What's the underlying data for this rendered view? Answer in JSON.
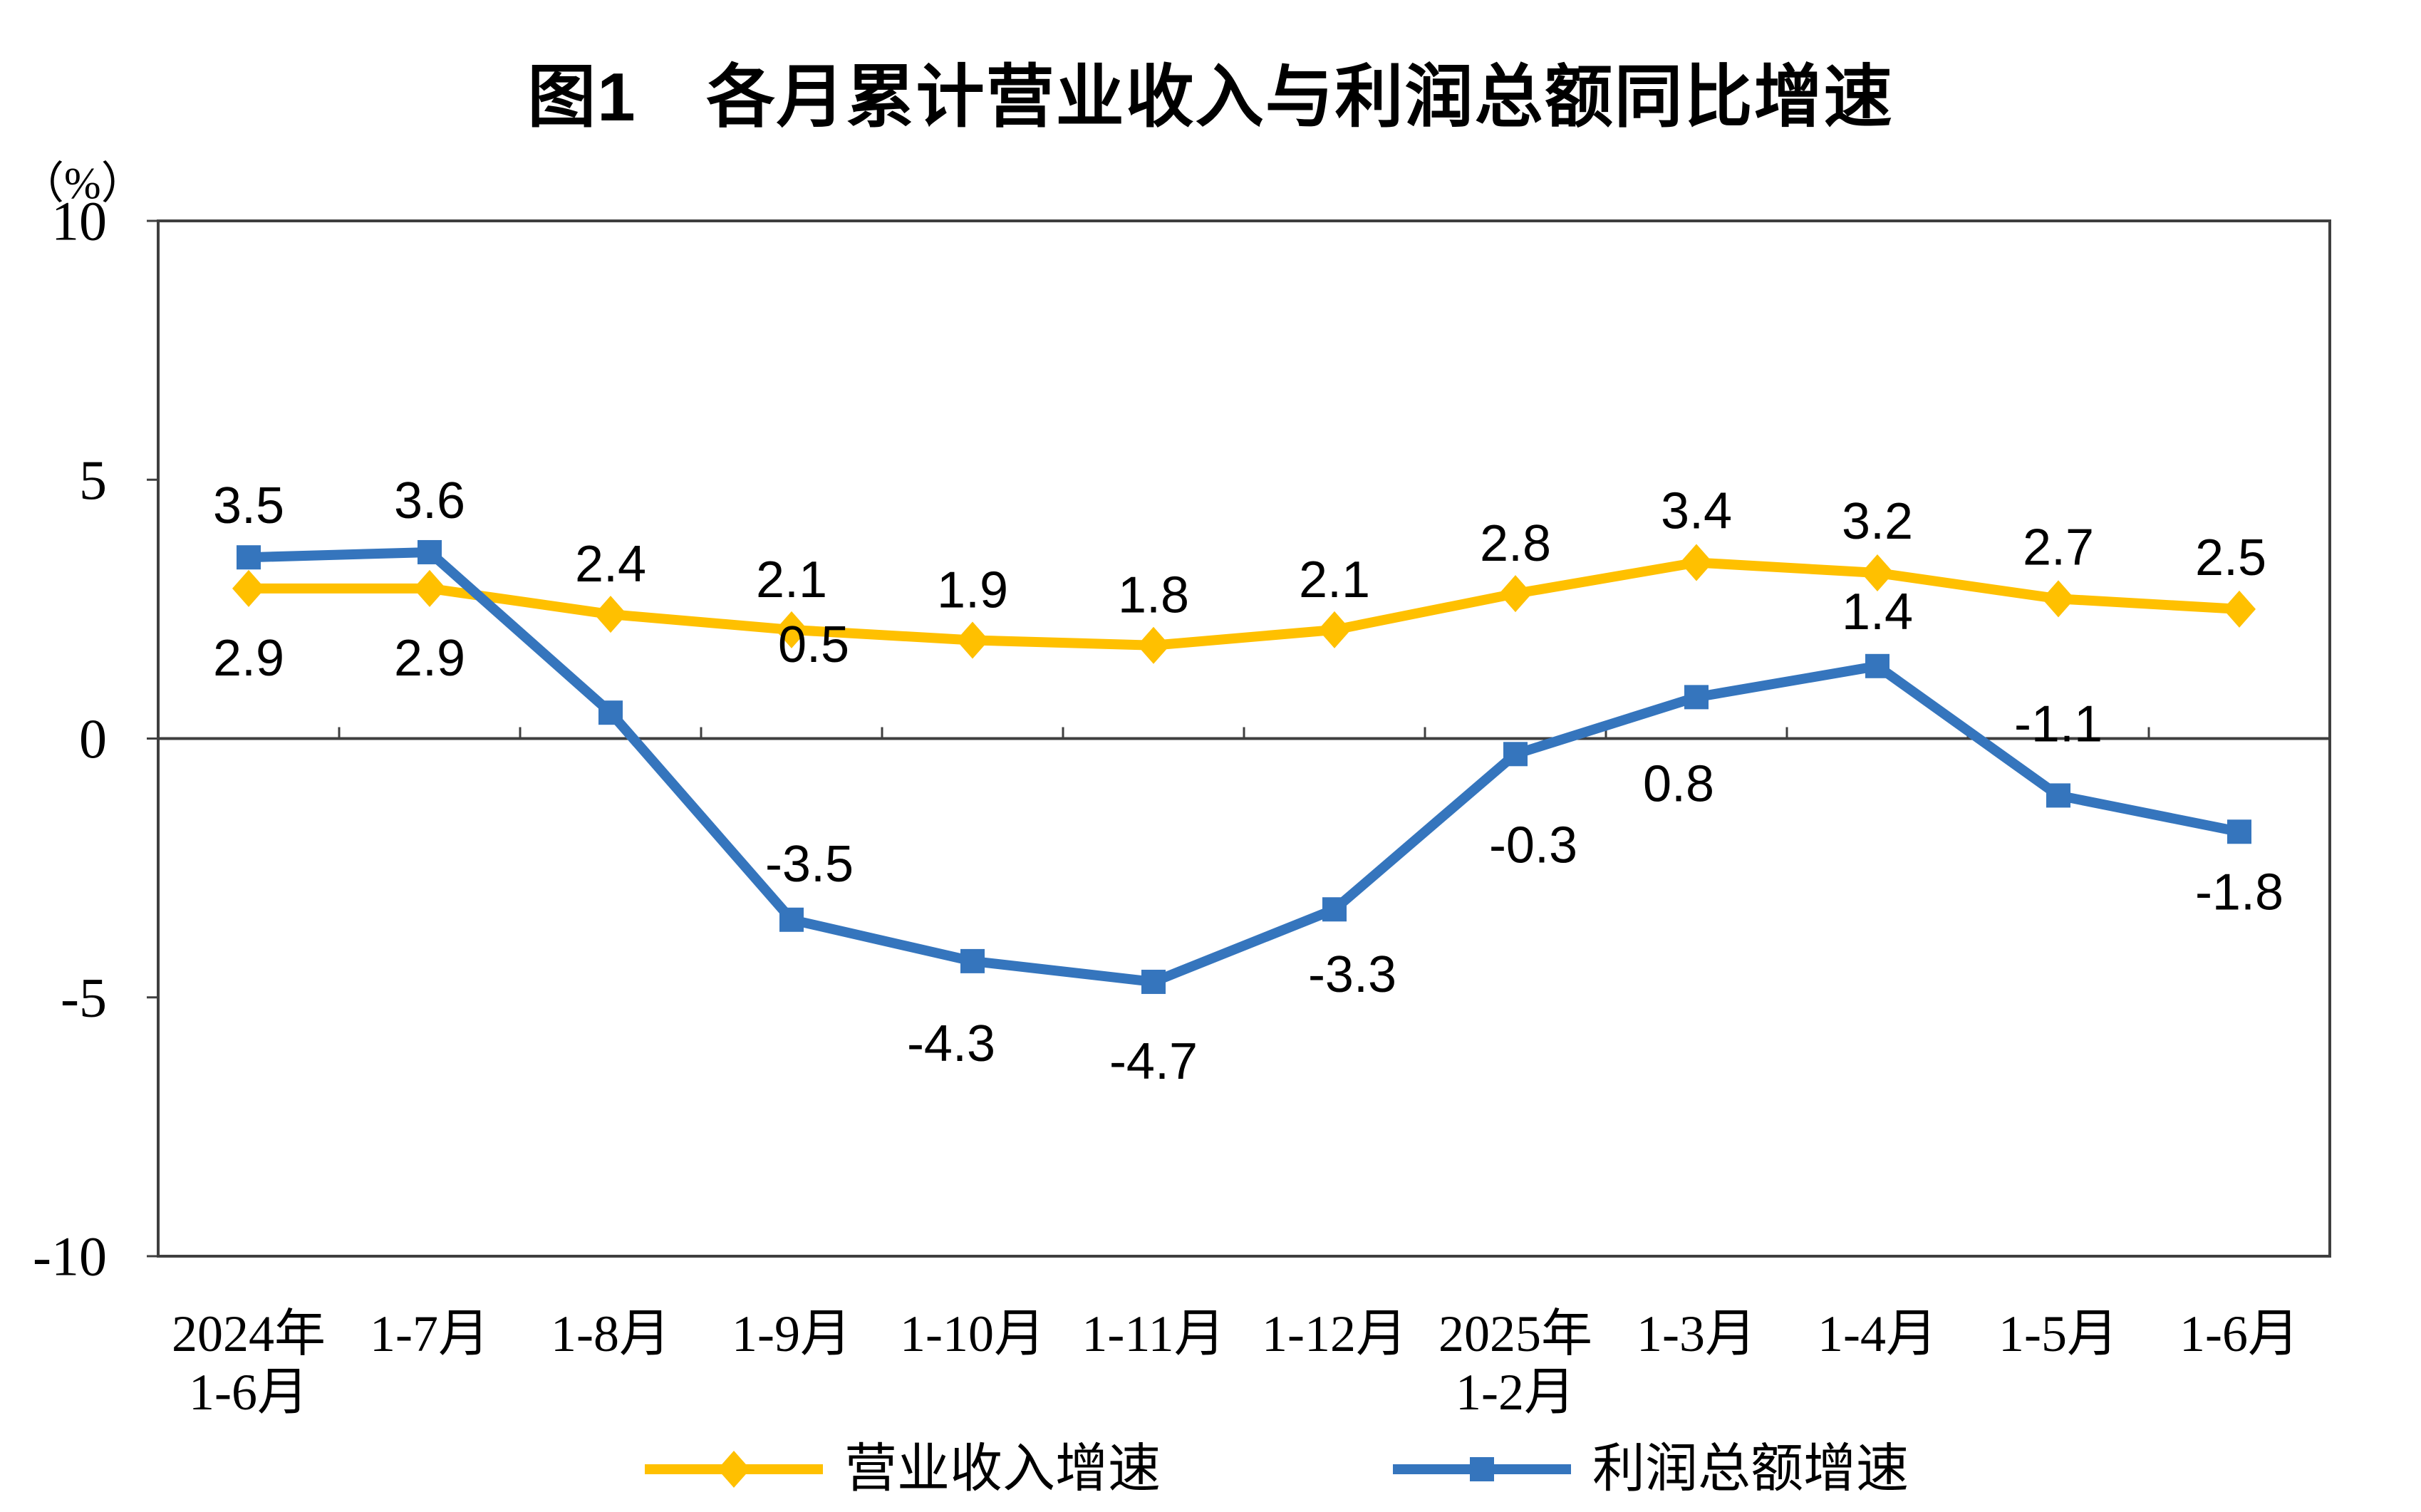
{
  "title": "图1　各月累计营业收入与利润总额同比增速",
  "unit_label": "（%）",
  "axis_color": "#3f3f3f",
  "text_color": "#000000",
  "chart_data": {
    "type": "line",
    "title": "图1　各月累计营业收入与利润总额同比增速",
    "ylabel": "（%）",
    "xlabel": "",
    "ylim": [
      -10,
      10
    ],
    "yticks": [
      10,
      5,
      0,
      -5,
      -10
    ],
    "grid": "zero-line-only",
    "legend_position": "bottom",
    "categories": [
      [
        "2024年",
        "1-6月"
      ],
      [
        "1-7月"
      ],
      [
        "1-8月"
      ],
      [
        "1-9月"
      ],
      [
        "1-10月"
      ],
      [
        "1-11月"
      ],
      [
        "1-12月"
      ],
      [
        "2025年",
        "1-2月"
      ],
      [
        "1-3月"
      ],
      [
        "1-4月"
      ],
      [
        "1-5月"
      ],
      [
        "1-6月"
      ]
    ],
    "series": [
      {
        "name": "营业收入增速",
        "color": "#FFC000",
        "marker": "diamond",
        "values": [
          2.9,
          2.9,
          2.4,
          2.1,
          1.9,
          1.8,
          2.1,
          2.8,
          3.4,
          3.2,
          2.7,
          2.5
        ],
        "label_offsets": [
          [
            0,
            98
          ],
          [
            0,
            98
          ],
          [
            0,
            -70
          ],
          [
            0,
            -70
          ],
          [
            0,
            -70
          ],
          [
            0,
            -70
          ],
          [
            0,
            -70
          ],
          [
            0,
            -70
          ],
          [
            0,
            -72
          ],
          [
            0,
            -72
          ],
          [
            0,
            -72
          ],
          [
            -12,
            -72
          ]
        ]
      },
      {
        "name": "利润总额增速",
        "color": "#3575BD",
        "marker": "square",
        "values": [
          3.5,
          3.6,
          0.5,
          -3.5,
          -4.3,
          -4.7,
          -3.3,
          -0.3,
          0.8,
          1.4,
          -1.1,
          -1.8
        ],
        "label_offsets": [
          [
            0,
            -72
          ],
          [
            0,
            -72
          ],
          [
            285,
            -95
          ],
          [
            25,
            -78
          ],
          [
            -30,
            116
          ],
          [
            0,
            112
          ],
          [
            25,
            92
          ],
          [
            25,
            128
          ],
          [
            -25,
            122
          ],
          [
            0,
            -76
          ],
          [
            0,
            -100
          ],
          [
            0,
            85
          ]
        ]
      }
    ]
  }
}
